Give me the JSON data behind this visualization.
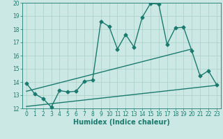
{
  "xlabel": "Humidex (Indice chaleur)",
  "xlim": [
    -0.5,
    23.5
  ],
  "ylim": [
    12,
    20
  ],
  "xticks": [
    0,
    1,
    2,
    3,
    4,
    5,
    6,
    7,
    8,
    9,
    10,
    11,
    12,
    13,
    14,
    15,
    16,
    17,
    18,
    19,
    20,
    21,
    22,
    23
  ],
  "yticks": [
    12,
    13,
    14,
    15,
    16,
    17,
    18,
    19,
    20
  ],
  "bg_color": "#cce8e4",
  "grid_color": "#aacfca",
  "line_color": "#1a7a6e",
  "line1_x": [
    0,
    1,
    2,
    3,
    4,
    5,
    6,
    7,
    8,
    9,
    10,
    11,
    12,
    13,
    14,
    15,
    16,
    17,
    18,
    19,
    20,
    21,
    22,
    23
  ],
  "line1_y": [
    13.9,
    13.1,
    12.75,
    12.1,
    13.35,
    13.25,
    13.3,
    14.05,
    14.15,
    18.6,
    18.2,
    16.5,
    17.6,
    16.65,
    18.9,
    19.95,
    19.9,
    16.85,
    18.1,
    18.15,
    16.35,
    14.45,
    14.85,
    13.8
  ],
  "line2_x": [
    0,
    20
  ],
  "line2_y": [
    13.3,
    16.5
  ],
  "line3_x": [
    0,
    23
  ],
  "line3_y": [
    12.15,
    13.75
  ],
  "marker": "D",
  "marker_size": 2.5,
  "line_width": 1.0,
  "tick_fontsize": 5.5,
  "label_fontsize": 7.0
}
